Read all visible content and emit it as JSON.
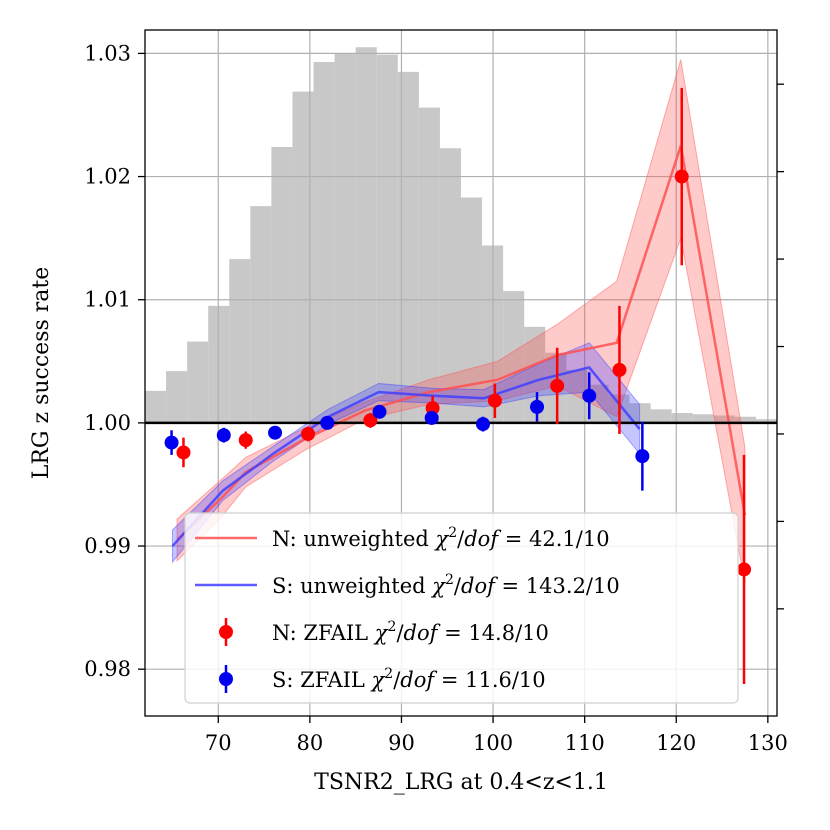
{
  "chart_data": {
    "type": "line",
    "xlabel": "TSNR2_LRG at 0.4<z<1.1",
    "ylabel": "LRG z success rate",
    "xlim": [
      62,
      131
    ],
    "ylim": [
      0.9762,
      1.0319
    ],
    "x_ticks": [
      70,
      80,
      90,
      100,
      110,
      120,
      130
    ],
    "x_tick_labels": [
      "70",
      "80",
      "90",
      "100",
      "110",
      "120",
      "130"
    ],
    "y_ticks": [
      0.98,
      0.99,
      1.0,
      1.01,
      1.02,
      1.03
    ],
    "y_tick_labels": [
      "0.98",
      "0.99",
      "1.00",
      "1.01",
      "1.02",
      "1.03"
    ],
    "reference_line": 1.0,
    "grid": true,
    "histogram": {
      "color": "#c8c8c8",
      "bin_start": 62,
      "bin_width": 2.3,
      "heights": [
        0.0026,
        0.0042,
        0.0066,
        0.0095,
        0.0133,
        0.0176,
        0.0224,
        0.0269,
        0.0293,
        0.03,
        0.0305,
        0.0299,
        0.0285,
        0.0256,
        0.0223,
        0.0183,
        0.0144,
        0.0107,
        0.0078,
        0.0057,
        0.0043,
        0.0031,
        0.0023,
        0.0016,
        0.0011,
        0.0008,
        0.0007,
        0.0006,
        0.0005,
        0.0003,
        0.0002
      ]
    },
    "series": [
      {
        "name": "N unweighted",
        "color": "#ff5050",
        "x": [
          65.5,
          70.5,
          73,
          79.5,
          86,
          93,
          100.5,
          107,
          113.5,
          120.5,
          127.5
        ],
        "values": [
          0.9905,
          0.994,
          0.996,
          0.9987,
          1.001,
          1.0025,
          1.0035,
          1.0055,
          1.0065,
          1.0225,
          0.9925
        ],
        "band_lower": [
          0.9888,
          0.9925,
          0.9948,
          0.9978,
          1.0003,
          1.0015,
          1.0018,
          1.003,
          1.0005,
          1.015,
          0.987
        ],
        "band_upper": [
          0.9922,
          0.9955,
          0.9972,
          0.9996,
          1.0017,
          1.0035,
          1.005,
          1.008,
          1.0115,
          1.0295,
          0.998
        ]
      },
      {
        "name": "S unweighted",
        "color": "#4040ff",
        "x": [
          65,
          70.5,
          76,
          82,
          87.5,
          93.5,
          99,
          105,
          110.5,
          116
        ],
        "values": [
          0.99,
          0.9945,
          0.9975,
          1.0005,
          1.0025,
          1.0022,
          1.002,
          1.0035,
          1.0045,
          0.9995
        ],
        "band_lower": [
          0.9887,
          0.9937,
          0.9969,
          0.9999,
          1.0018,
          1.0016,
          1.0013,
          1.0022,
          1.0025,
          0.9975
        ],
        "band_upper": [
          0.9913,
          0.9953,
          0.9981,
          1.0011,
          1.0032,
          1.0028,
          1.0027,
          1.0048,
          1.0065,
          1.0015
        ]
      }
    ],
    "points": [
      {
        "name": "N ZFAIL",
        "color": "#ff0000",
        "x": [
          66.2,
          73,
          79.8,
          86.6,
          93.4,
          100.2,
          107,
          113.8,
          120.6,
          127.4
        ],
        "values": [
          0.9976,
          0.9986,
          0.9991,
          1.0002,
          1.0012,
          1.0018,
          1.003,
          1.0043,
          1.02,
          0.9881
        ],
        "errors": [
          0.0012,
          0.0007,
          0.0006,
          0.0006,
          0.001,
          0.0014,
          0.0031,
          0.0052,
          0.0072,
          0.0093
        ]
      },
      {
        "name": "S ZFAIL",
        "color": "#0000ee",
        "x": [
          64.9,
          70.6,
          76.2,
          81.9,
          87.6,
          93.3,
          98.9,
          104.8,
          110.5,
          116.3
        ],
        "values": [
          0.9984,
          0.999,
          0.9992,
          1.0,
          1.0009,
          1.0004,
          0.9999,
          1.0013,
          1.0022,
          0.9973
        ],
        "errors": [
          0.001,
          0.0006,
          0.0004,
          0.0004,
          0.0004,
          0.0005,
          0.0006,
          0.0012,
          0.0019,
          0.0028
        ]
      }
    ],
    "legend": {
      "position": "lower-right",
      "entries": [
        {
          "kind": "line",
          "color": "#ff5050",
          "prefix": "N: unweighted",
          "stat": "42.1/10"
        },
        {
          "kind": "line",
          "color": "#4040ff",
          "prefix": "S: unweighted",
          "stat": "143.2/10"
        },
        {
          "kind": "point",
          "color": "#ff0000",
          "prefix": "N: ZFAIL",
          "stat": "14.8/10"
        },
        {
          "kind": "point",
          "color": "#0000ee",
          "prefix": "S: ZFAIL",
          "stat": "11.6/10"
        }
      ]
    }
  }
}
